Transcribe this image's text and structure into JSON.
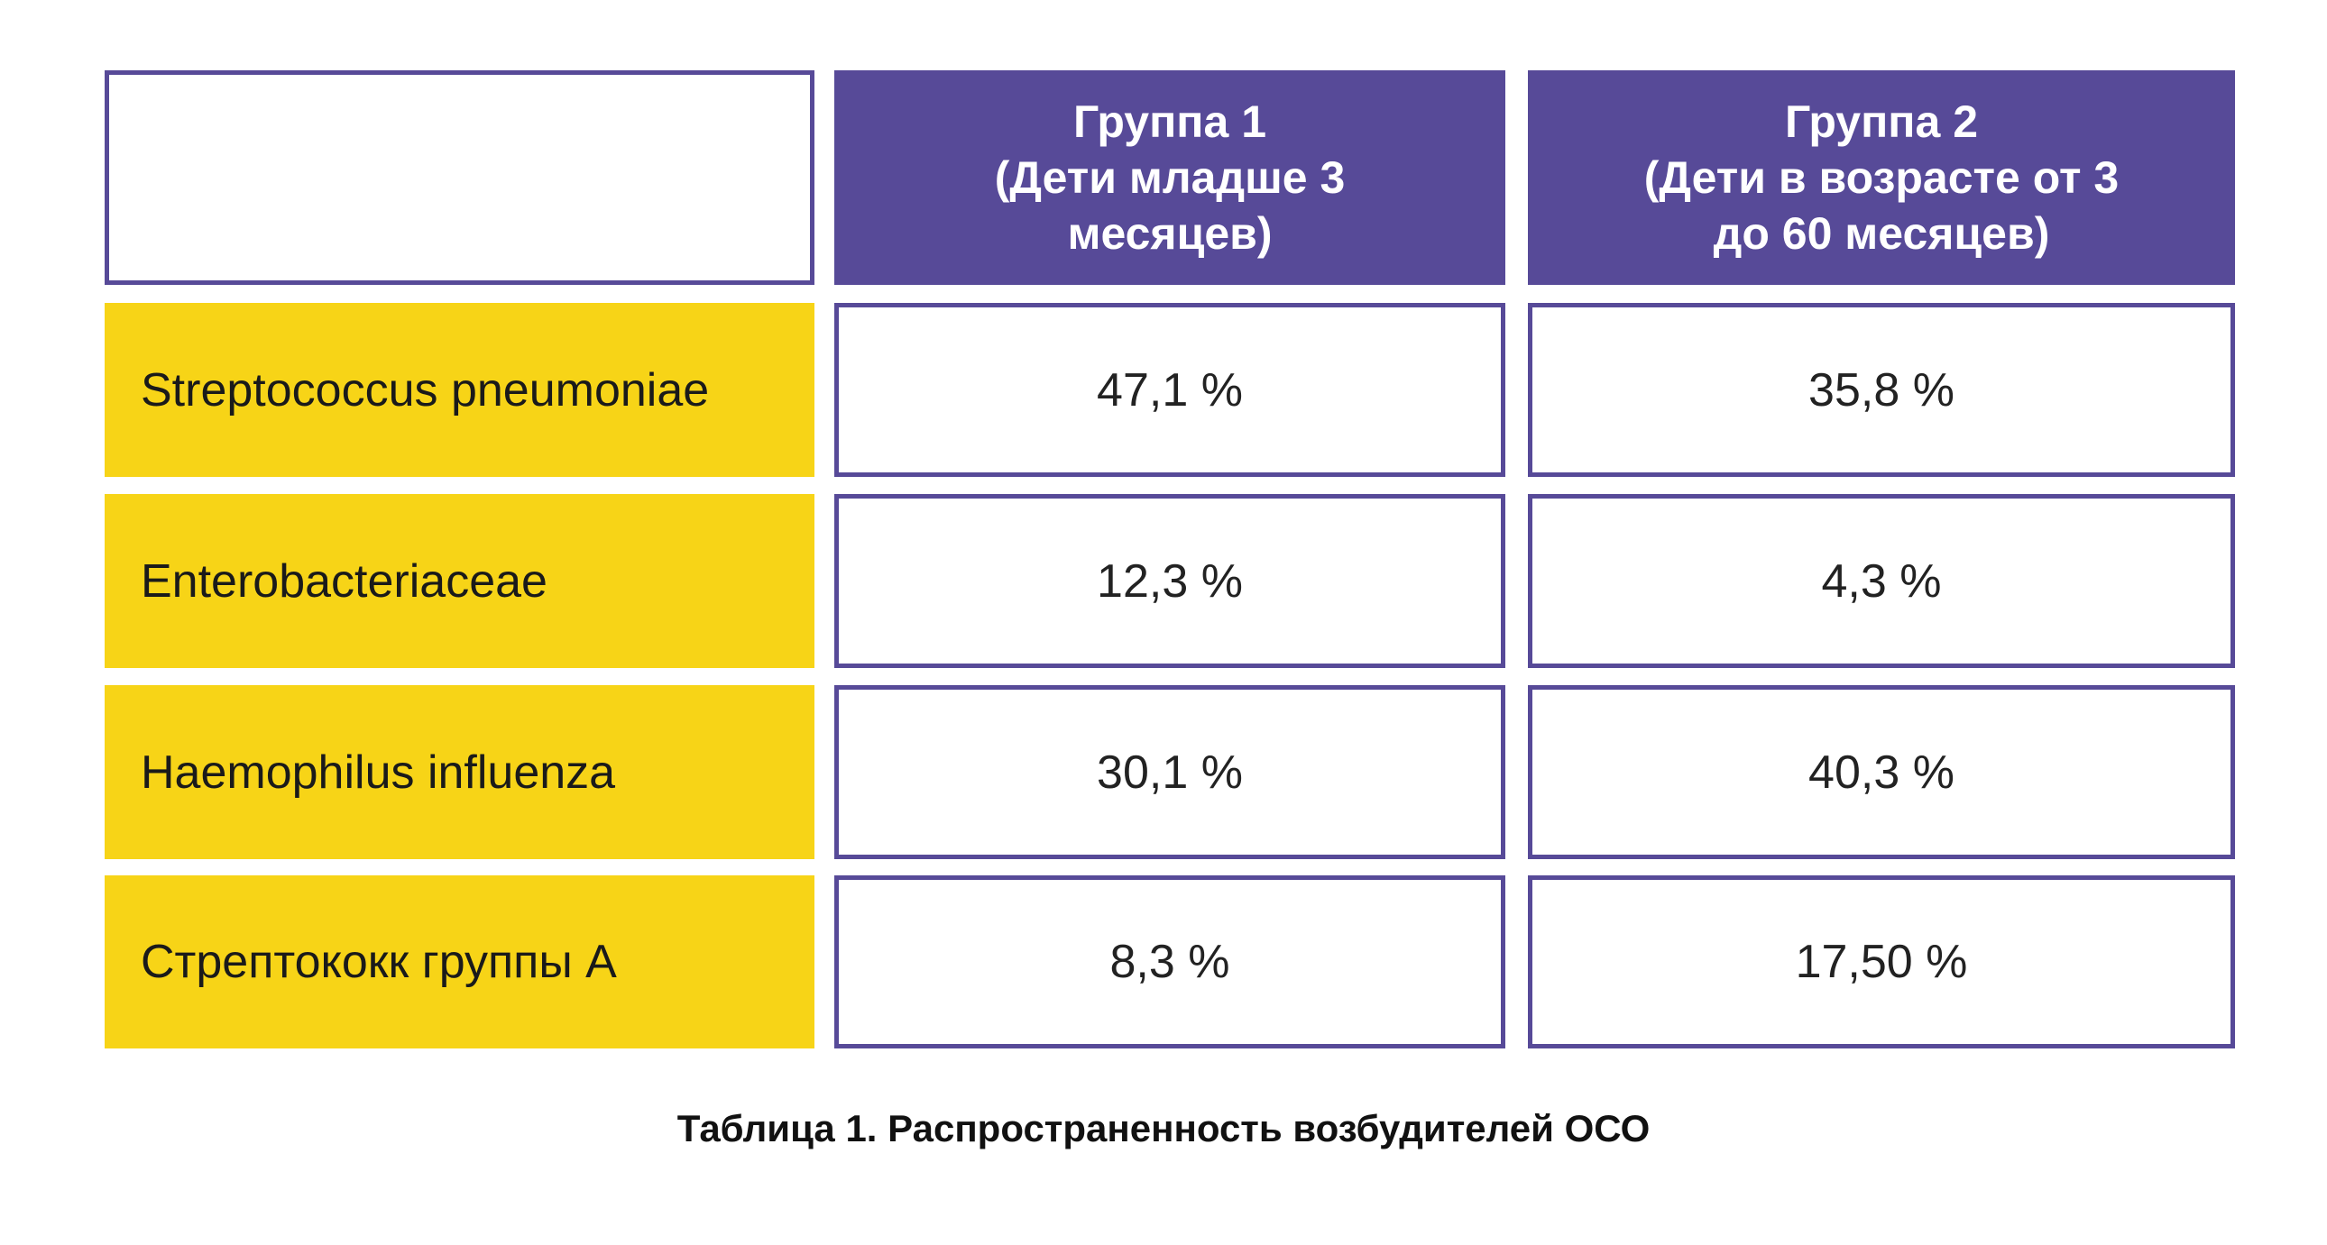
{
  "colors": {
    "header_bg": "#574a98",
    "label_bg": "#f7d417",
    "border": "#574a98"
  },
  "table": {
    "headers": [
      "",
      "Группа 1\n(Дети младше 3\nмесяцев)",
      "Группа 2\n(Дети в возрасте от 3\nдо 60 месяцев)"
    ],
    "rows": [
      {
        "label": "Streptococcus pneumoniae",
        "g1": "47,1 %",
        "g2": "35,8 %"
      },
      {
        "label": "Enterobacteriaceae",
        "g1": "12,3 %",
        "g2": "4,3 %"
      },
      {
        "label": "Haemophilus influenza",
        "g1": "30,1 %",
        "g2": "40,3 %"
      },
      {
        "label": "Стрептококк группы А",
        "g1": "8,3 %",
        "g2": "17,50 %"
      }
    ]
  },
  "caption": "Таблица 1. Распространенность возбудителей ОСО"
}
